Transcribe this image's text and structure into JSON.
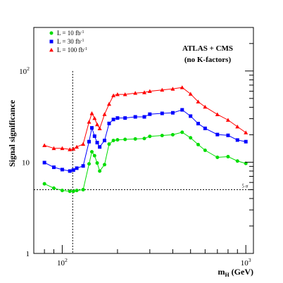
{
  "chart_data": {
    "type": "line",
    "title": "",
    "xlabel": {
      "base": "m",
      "sub": "H",
      "unit": " (GeV)"
    },
    "ylabel": "Signal significance",
    "x_scale": "log",
    "y_scale": "log",
    "xlim": [
      70,
      1100
    ],
    "ylim": [
      1,
      300
    ],
    "ticks": {
      "y": [
        {
          "value": 1,
          "label": "1"
        },
        {
          "value": 10,
          "label": "10"
        },
        {
          "value": 100,
          "label": "10",
          "exp": "2"
        }
      ],
      "x": [
        {
          "value": 100,
          "label": "10",
          "exp": "2"
        },
        {
          "value": 1000,
          "label": "10",
          "exp": "3"
        }
      ]
    },
    "annotation": {
      "line1": "ATLAS + CMS",
      "line2": "(no K-factors)"
    },
    "reference_line": {
      "y": 5,
      "label": "5 σ",
      "style": "dotted"
    },
    "vertical_line": {
      "x": 114,
      "style": "dotted"
    },
    "legend": {
      "position": "top-left"
    },
    "series": [
      {
        "name": "L = 10 fb⁻¹",
        "legend_main": "L = 10 fb",
        "legend_sup": "-1",
        "color": "#00dd00",
        "marker": "circle",
        "x": [
          80,
          90,
          100,
          110,
          115,
          120,
          130,
          140,
          145,
          150,
          155,
          160,
          170,
          180,
          190,
          200,
          220,
          250,
          280,
          300,
          350,
          400,
          450,
          500,
          550,
          600,
          700,
          800,
          900,
          1000
        ],
        "y": [
          5.8,
          5.2,
          4.9,
          4.8,
          4.8,
          4.9,
          5.0,
          9.6,
          13.0,
          11.8,
          9.8,
          8.0,
          9.4,
          15.8,
          17.3,
          17.6,
          17.8,
          18.0,
          18.2,
          19.2,
          19.6,
          20.0,
          21.3,
          18.5,
          15.6,
          13.5,
          11.3,
          11.5,
          10.3,
          9.7
        ]
      },
      {
        "name": "L = 30 fb⁻¹",
        "legend_main": "L = 30 fb",
        "legend_sup": "-1",
        "color": "#0000ff",
        "marker": "square",
        "x": [
          80,
          90,
          100,
          110,
          115,
          120,
          130,
          140,
          145,
          150,
          155,
          160,
          170,
          180,
          190,
          200,
          220,
          250,
          280,
          300,
          350,
          400,
          450,
          500,
          550,
          600,
          700,
          800,
          900,
          1000
        ],
        "y": [
          9.9,
          8.8,
          8.3,
          8.0,
          8.2,
          8.6,
          9.1,
          16.8,
          23.8,
          19.3,
          16.4,
          14.7,
          17.3,
          26.6,
          29.4,
          30.5,
          30.5,
          31.4,
          31.4,
          33.6,
          34.3,
          34.8,
          37.5,
          32.0,
          26.5,
          23.5,
          20.1,
          19.7,
          17.5,
          16.8
        ]
      },
      {
        "name": "L = 100 fb⁻¹",
        "legend_main": "L = 100 fb",
        "legend_sup": "-1",
        "color": "#ff0000",
        "marker": "triangle",
        "x": [
          80,
          90,
          100,
          110,
          115,
          120,
          130,
          140,
          145,
          150,
          155,
          160,
          170,
          180,
          190,
          200,
          220,
          250,
          280,
          300,
          350,
          400,
          450,
          500,
          550,
          600,
          700,
          800,
          900,
          1000
        ],
        "y": [
          15.3,
          14.2,
          14.2,
          13.8,
          14.0,
          14.7,
          15.8,
          27.6,
          34.3,
          30.3,
          25.9,
          23.4,
          33.5,
          43.4,
          53.8,
          55.4,
          55.4,
          57.2,
          58.2,
          60.0,
          62.0,
          63.6,
          66.0,
          56.0,
          46.0,
          40.4,
          33.4,
          29.0,
          24.5,
          21.1
        ]
      }
    ]
  }
}
